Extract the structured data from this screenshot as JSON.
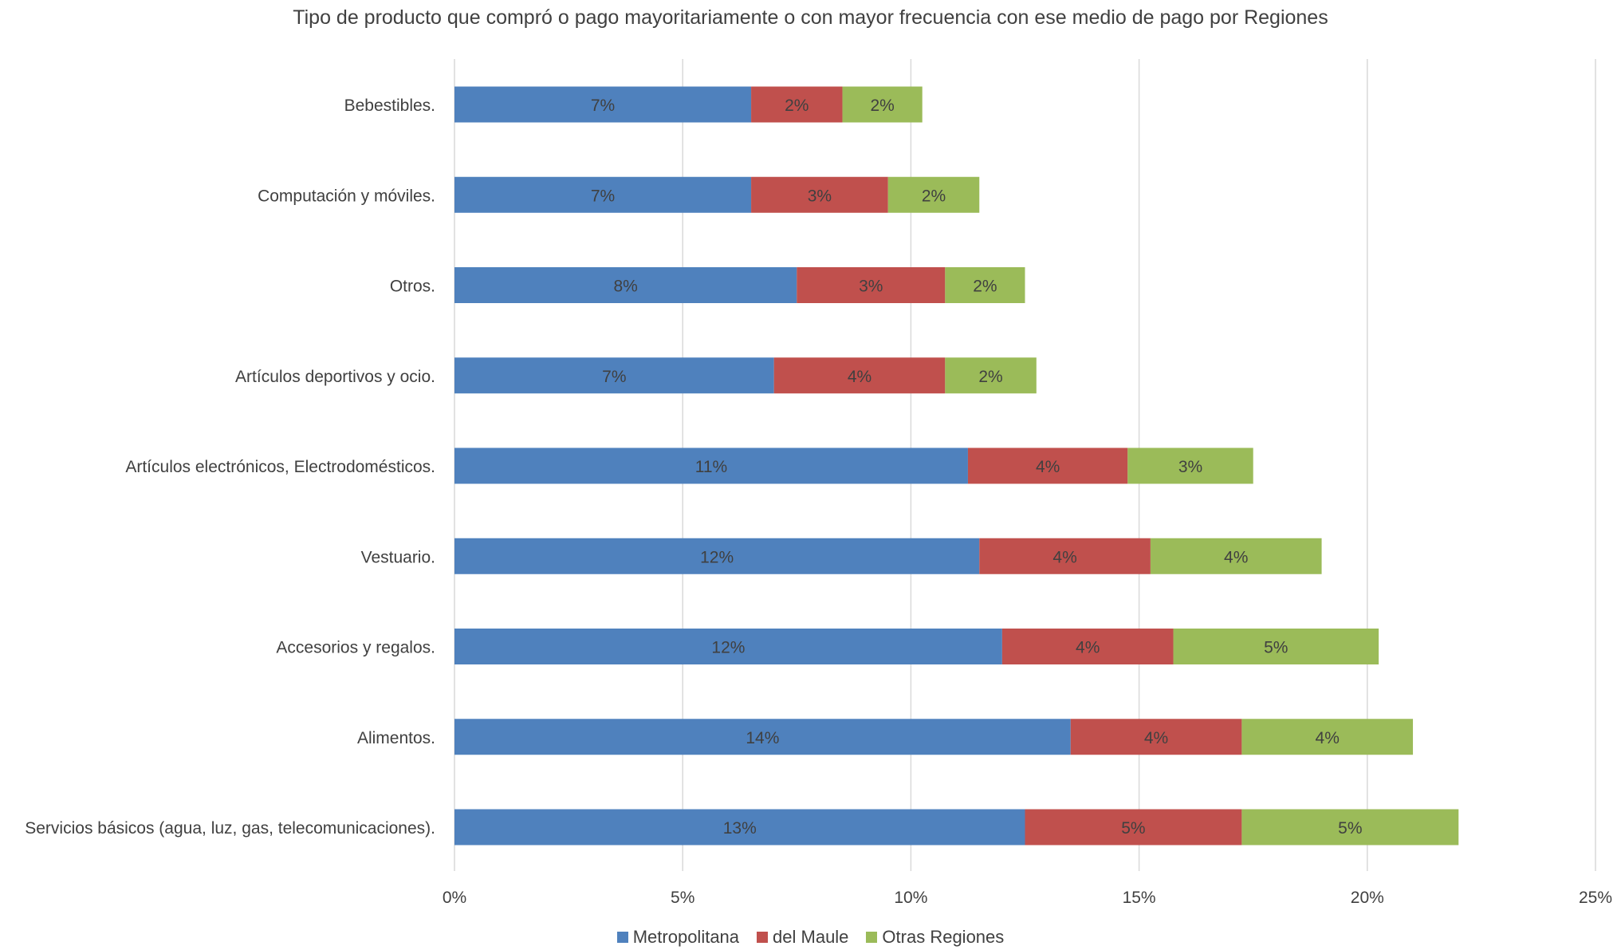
{
  "chart_data": {
    "type": "bar",
    "orientation": "horizontal",
    "stacked": true,
    "title": "Tipo de producto que compró o pago mayoritariamente o con mayor frecuencia con ese medio de pago por Regiones",
    "xlabel": "",
    "ylabel": "",
    "xlim": [
      0,
      25
    ],
    "x_ticks": [
      "0%",
      "5%",
      "10%",
      "15%",
      "20%",
      "25%"
    ],
    "x_tick_values": [
      0,
      5,
      10,
      15,
      20,
      25
    ],
    "grid": "vertical",
    "legend_position": "bottom",
    "categories": [
      "Bebestibles.",
      "Computación y móviles.",
      "Otros.",
      "Artículos deportivos y ocio.",
      "Artículos electrónicos, Electrodomésticos.",
      "Vestuario.",
      "Accesorios y regalos.",
      "Alimentos.",
      "Servicios básicos (agua, luz, gas, telecomunicaciones)."
    ],
    "series": [
      {
        "name": "Metropolitana",
        "color": "#4F81BD",
        "values": [
          6.5,
          6.5,
          7.5,
          7.0,
          11.25,
          11.5,
          12.0,
          13.5,
          12.5
        ],
        "labels": [
          "7%",
          "7%",
          "8%",
          "7%",
          "11%",
          "12%",
          "12%",
          "14%",
          "13%"
        ]
      },
      {
        "name": "del Maule",
        "color": "#C0504D",
        "values": [
          2.0,
          3.0,
          3.25,
          3.75,
          3.5,
          3.75,
          3.75,
          3.75,
          4.75
        ],
        "labels": [
          "2%",
          "3%",
          "3%",
          "4%",
          "4%",
          "4%",
          "4%",
          "4%",
          "5%"
        ]
      },
      {
        "name": "Otras Regiones",
        "color": "#9BBB59",
        "values": [
          1.75,
          2.0,
          1.75,
          2.0,
          2.75,
          3.75,
          4.5,
          3.75,
          4.75
        ],
        "labels": [
          "2%",
          "2%",
          "2%",
          "2%",
          "3%",
          "4%",
          "5%",
          "4%",
          "5%"
        ]
      }
    ],
    "gridline_color": "#D9D9D9",
    "text_color": "#404040"
  }
}
